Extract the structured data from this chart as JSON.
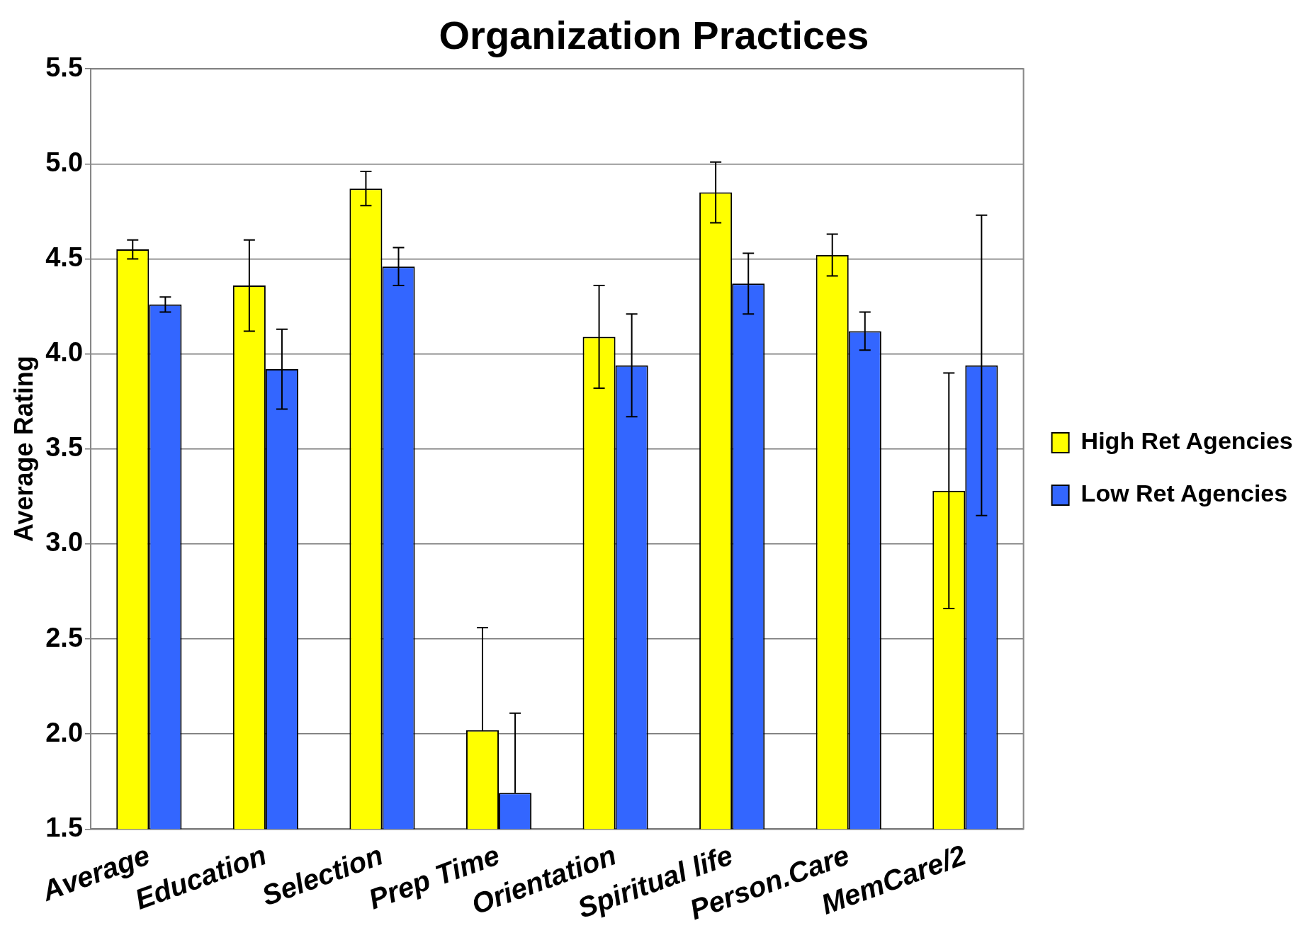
{
  "chart_data": {
    "type": "bar",
    "title": "Organization Practices",
    "ylabel": "Average Rating",
    "categories": [
      "Average",
      "Education",
      "Selection",
      "Prep Time",
      "Orientation",
      "Spiritual life",
      "Person.Care",
      "MemCare/2"
    ],
    "series": [
      {
        "name": "High Ret Agencies",
        "color": "#ffff00",
        "values": [
          4.55,
          4.36,
          4.87,
          2.02,
          4.09,
          4.85,
          4.52,
          3.28
        ],
        "errors": [
          0.05,
          0.24,
          0.09,
          [
            2.02,
            2.56
          ],
          0.27,
          0.16,
          0.11,
          0.62
        ]
      },
      {
        "name": "Low Ret Agencies",
        "color": "#3366ff",
        "values": [
          4.26,
          3.92,
          4.46,
          1.69,
          3.94,
          4.37,
          4.12,
          3.94
        ],
        "errors": [
          0.04,
          0.21,
          0.1,
          [
            1.69,
            2.11
          ],
          0.27,
          0.16,
          0.1,
          0.79
        ]
      }
    ],
    "ylim": [
      1.5,
      5.5
    ],
    "yticks": [
      1.5,
      {
        "value": 2,
        "label": "2.0"
      },
      2.5,
      {
        "value": 3,
        "label": "3.0"
      },
      3.5,
      {
        "value": 4,
        "label": "4.0"
      },
      4.5,
      {
        "value": 5,
        "label": "5.0"
      },
      5.5
    ],
    "grid": "y",
    "legend": "right"
  }
}
